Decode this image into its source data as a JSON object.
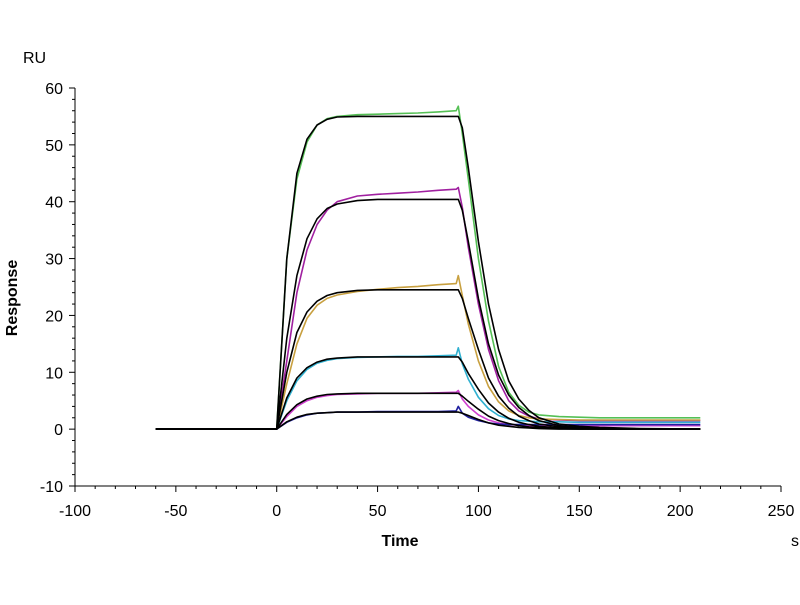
{
  "chart_data": {
    "type": "line",
    "title": "",
    "xlabel": "Time",
    "ylabel": "Response",
    "y_unit": "RU",
    "x_unit": "s",
    "xlim": [
      -100,
      250
    ],
    "ylim": [
      -10,
      60
    ],
    "x_ticks": [
      -100,
      -50,
      0,
      50,
      100,
      150,
      200,
      250
    ],
    "y_ticks": [
      -10,
      0,
      10,
      20,
      30,
      40,
      50,
      60
    ],
    "x_tick_labels": [
      "-100",
      "-50",
      "0",
      "50",
      "100",
      "150",
      "200",
      "250"
    ],
    "y_tick_labels": [
      "-10",
      "0",
      "10",
      "20",
      "30",
      "40",
      "50",
      "60"
    ],
    "grid": false,
    "legend": "none",
    "x": [
      -60,
      -40,
      -20,
      0,
      5,
      10,
      15,
      20,
      25,
      30,
      40,
      50,
      60,
      70,
      80,
      89,
      90,
      92,
      95,
      100,
      105,
      110,
      115,
      120,
      125,
      130,
      140,
      150,
      160,
      180,
      210
    ],
    "series": [
      {
        "color": "#55c055",
        "values": [
          0,
          0,
          0,
          0,
          30,
          44,
          50.5,
          53.5,
          54.6,
          55,
          55.3,
          55.4,
          55.5,
          55.6,
          55.8,
          56,
          56.8,
          52,
          44,
          30,
          19,
          11,
          6.5,
          4.2,
          3,
          2.5,
          2.2,
          2.1,
          2,
          2,
          2
        ]
      },
      {
        "color": "#000000",
        "values": [
          0,
          0,
          0,
          0,
          30,
          45,
          51,
          53.5,
          54.5,
          54.9,
          55,
          55,
          55,
          55,
          55,
          55,
          55,
          53,
          46,
          33,
          22,
          14,
          8.5,
          5.3,
          3.3,
          2,
          0.9,
          0.5,
          0.3,
          0.1,
          0
        ]
      },
      {
        "color": "#a020a0",
        "values": [
          0,
          0,
          0,
          0,
          12,
          24,
          31.5,
          36,
          38.5,
          40,
          41,
          41.3,
          41.5,
          41.7,
          42,
          42.2,
          42.5,
          39,
          32,
          22,
          14,
          8.5,
          5,
          3.2,
          2.3,
          1.8,
          1.6,
          1.5,
          1.5,
          1.5,
          1.5
        ]
      },
      {
        "color": "#000000",
        "values": [
          0,
          0,
          0,
          0,
          16,
          27,
          33.5,
          37,
          38.8,
          39.6,
          40.2,
          40.4,
          40.4,
          40.4,
          40.4,
          40.4,
          40.4,
          38.5,
          33,
          23,
          15,
          9.5,
          6,
          3.8,
          2.4,
          1.5,
          0.6,
          0.3,
          0.1,
          0,
          0
        ]
      },
      {
        "color": "#c8a040",
        "values": [
          0,
          0,
          0,
          0,
          8,
          15,
          19.5,
          21.8,
          23,
          23.6,
          24.2,
          24.6,
          24.9,
          25.1,
          25.4,
          25.6,
          27,
          23.5,
          18.5,
          12,
          7.5,
          4.8,
          3.2,
          2.4,
          2,
          1.8,
          1.7,
          1.6,
          1.6,
          1.6,
          1.6
        ]
      },
      {
        "color": "#000000",
        "values": [
          0,
          0,
          0,
          0,
          10,
          17,
          20.6,
          22.5,
          23.5,
          24,
          24.4,
          24.5,
          24.5,
          24.5,
          24.5,
          24.5,
          24.5,
          23,
          19.5,
          14,
          9,
          5.8,
          3.7,
          2.3,
          1.5,
          0.9,
          0.4,
          0.2,
          0.1,
          0,
          0
        ]
      },
      {
        "color": "#30b0d0",
        "values": [
          0,
          0,
          0,
          0,
          5,
          8.5,
          10.5,
          11.6,
          12.1,
          12.4,
          12.6,
          12.7,
          12.8,
          12.8,
          12.9,
          13,
          14.3,
          11.5,
          8.8,
          5.6,
          3.6,
          2.4,
          1.8,
          1.5,
          1.4,
          1.3,
          1.3,
          1.2,
          1.2,
          1.2,
          1.2
        ]
      },
      {
        "color": "#000000",
        "values": [
          0,
          0,
          0,
          0,
          5.5,
          9,
          10.8,
          11.8,
          12.3,
          12.5,
          12.7,
          12.7,
          12.7,
          12.7,
          12.7,
          12.7,
          12.7,
          11.8,
          9.8,
          7,
          4.6,
          3,
          1.9,
          1.2,
          0.8,
          0.5,
          0.2,
          0.1,
          0,
          0,
          0
        ]
      },
      {
        "color": "#d040d0",
        "values": [
          0,
          0,
          0,
          0,
          2.2,
          4,
          5,
          5.6,
          5.9,
          6.1,
          6.2,
          6.3,
          6.3,
          6.3,
          6.4,
          6.5,
          6.8,
          5.3,
          4,
          2.5,
          1.6,
          1.1,
          0.8,
          0.7,
          0.6,
          0.6,
          0.6,
          0.6,
          0.6,
          0.6,
          0.6
        ]
      },
      {
        "color": "#000000",
        "values": [
          0,
          0,
          0,
          0,
          2.6,
          4.3,
          5.3,
          5.8,
          6.1,
          6.2,
          6.3,
          6.3,
          6.3,
          6.3,
          6.3,
          6.3,
          6.3,
          5.8,
          4.9,
          3.5,
          2.3,
          1.5,
          1,
          0.6,
          0.4,
          0.3,
          0.1,
          0,
          0,
          0,
          0
        ]
      },
      {
        "color": "#2020a0",
        "values": [
          0,
          0,
          0,
          0,
          1.2,
          2,
          2.5,
          2.8,
          2.9,
          3,
          3,
          3.1,
          3.1,
          3.1,
          3.1,
          3.2,
          4,
          2.8,
          2.1,
          1.5,
          1.1,
          0.9,
          0.8,
          0.8,
          0.8,
          0.8,
          0.8,
          0.8,
          0.8,
          0.8,
          0.8
        ]
      },
      {
        "color": "#000000",
        "values": [
          0,
          0,
          0,
          0,
          1.3,
          2.1,
          2.6,
          2.8,
          2.9,
          3,
          3,
          3,
          3,
          3,
          3,
          3,
          3,
          2.8,
          2.4,
          1.7,
          1.1,
          0.7,
          0.5,
          0.3,
          0.2,
          0.1,
          0,
          0,
          0,
          0,
          0
        ]
      }
    ]
  }
}
